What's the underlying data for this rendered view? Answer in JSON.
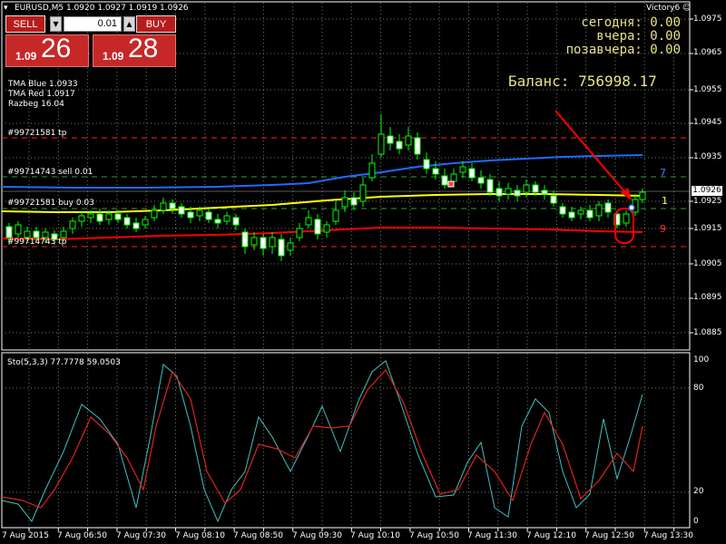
{
  "chart": {
    "title": "EURUSD,M5  1.0920 1.0927 1.0919 1.0926",
    "expert": "Victory6 ☺",
    "y_ticks": [
      "1.0975",
      "1.0965",
      "1.0955",
      "1.0945",
      "1.0935",
      "1.0925",
      "1.0915",
      "1.0905",
      "1.0895",
      "1.0885"
    ],
    "current_price": "1.0926",
    "x_ticks": [
      "7 Aug 2015",
      "7 Aug 06:50",
      "7 Aug 07:30",
      "7 Aug 08:10",
      "7 Aug 08:50",
      "7 Aug 09:30",
      "7 Aug 10:10",
      "7 Aug 10:50",
      "7 Aug 11:30",
      "7 Aug 12:10",
      "7 Aug 12:50",
      "7 Aug 13:30"
    ]
  },
  "trade_panel": {
    "sell_label": "SELL",
    "buy_label": "BUY",
    "lot_value": "0.01",
    "sell_prefix": "1.09",
    "sell_big": "26",
    "buy_prefix": "1.09",
    "buy_big": "28"
  },
  "indicators": {
    "tma_blue": "TMA Blue 1.0933",
    "tma_red": "TMA Red 1.0917",
    "razbeg": "Razbeg 16.04"
  },
  "stats": {
    "today": "сегодня: 0.00",
    "yesterday": "вчера: 0.00",
    "day_before": "позавчера: 0.00",
    "balance": "Баланс: 756998.17"
  },
  "orders": {
    "tp1": "#99721581 tp",
    "sell": "#99714743 sell 0.01",
    "buy": "#99721581 buy 0.03",
    "tp2": "#99714743 tp"
  },
  "right_marks": {
    "top": "7",
    "mid": "1",
    "low": "9"
  },
  "stochastic": {
    "label": "Sto(5,3,3) 77.7778 59.0503",
    "y_ticks": [
      "100",
      "80",
      "20",
      "0"
    ]
  },
  "colors": {
    "tma_blue": "#1e6cff",
    "tma_yellow": "#ffff00",
    "tma_red": "#ff0000",
    "grid": "#6b7a6b",
    "stoch_main": "#40c0c0",
    "stoch_signal": "#dd2222"
  }
}
